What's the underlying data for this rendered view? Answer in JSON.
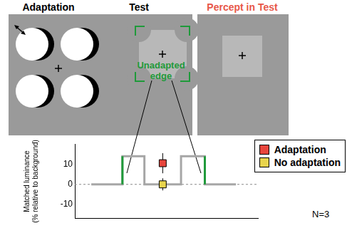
{
  "panels": {
    "adaptation": {
      "title": "Adaptation"
    },
    "test": {
      "title": "Test",
      "annotation": [
        "Unadapted",
        "edge"
      ]
    },
    "percept": {
      "title": "Percept in Test"
    }
  },
  "chart_data": {
    "type": "line",
    "y_label": [
      "Matched luminance",
      "(% relative to background)"
    ],
    "xlim": [
      0,
      100
    ],
    "ylim": [
      -17,
      20
    ],
    "yticks": [
      -10,
      0,
      10
    ],
    "tick_labels": "y",
    "grid": false,
    "legend": "upper right",
    "annotation": "N=3",
    "baseline": 0,
    "profile": {
      "x": [
        9,
        26,
        26,
        38,
        38,
        58,
        58,
        71,
        71,
        88
      ],
      "values": [
        0,
        0,
        14,
        14,
        0,
        0,
        14,
        14,
        0,
        0
      ],
      "color": "#a6a6a6"
    },
    "edges": {
      "x": [
        26,
        71
      ],
      "color": "#1f9a3a"
    },
    "series": [
      {
        "name": "Adaptation",
        "type": "scatter",
        "marker": "square",
        "color": "#e8453c",
        "x": [
          48
        ],
        "values": [
          10.5
        ],
        "error": [
          5
        ]
      },
      {
        "name": "No adaptation",
        "type": "scatter",
        "marker": "square",
        "color": "#e8d44d",
        "x": [
          48
        ],
        "values": [
          0
        ],
        "error": [
          3
        ]
      }
    ]
  }
}
